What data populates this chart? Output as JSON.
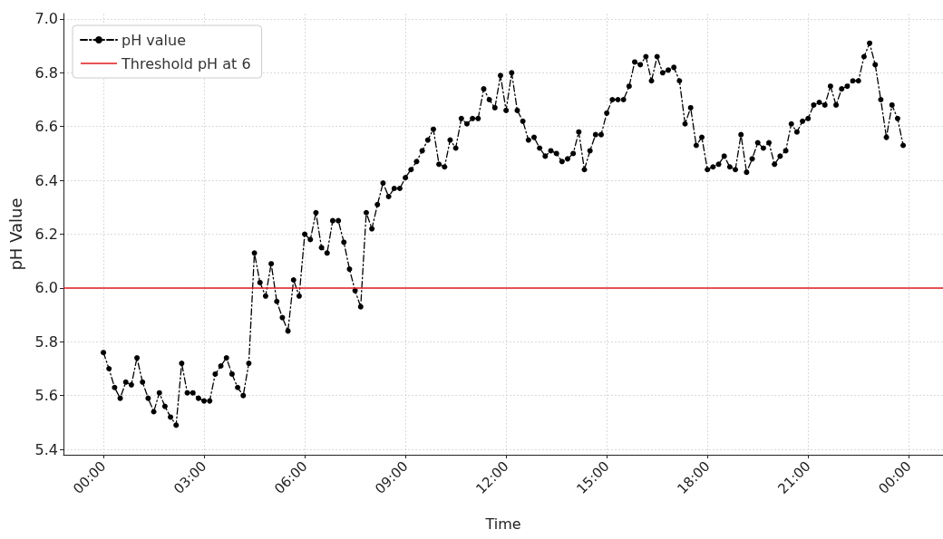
{
  "chart_data": {
    "type": "line",
    "xlabel": "Time",
    "ylabel": "pH Value",
    "x": [
      0,
      0.1667,
      0.3333,
      0.5,
      0.6667,
      0.8333,
      1,
      1.1667,
      1.3333,
      1.5,
      1.6667,
      1.8333,
      2,
      2.1667,
      2.3333,
      2.5,
      2.6667,
      2.8333,
      3,
      3.1667,
      3.3333,
      3.5,
      3.6667,
      3.8333,
      4,
      4.1667,
      4.3333,
      4.5,
      4.6667,
      4.8333,
      5,
      5.1667,
      5.3333,
      5.5,
      5.6667,
      5.8333,
      6,
      6.1667,
      6.3333,
      6.5,
      6.6667,
      6.8333,
      7,
      7.1667,
      7.3333,
      7.5,
      7.6667,
      7.8333,
      8,
      8.1667,
      8.3333,
      8.5,
      8.6667,
      8.8333,
      9,
      9.1667,
      9.3333,
      9.5,
      9.6667,
      9.8333,
      10,
      10.1667,
      10.3333,
      10.5,
      10.6667,
      10.8333,
      11,
      11.1667,
      11.3333,
      11.5,
      11.6667,
      11.8333,
      12,
      12.1667,
      12.3333,
      12.5,
      12.6667,
      12.8333,
      13,
      13.1667,
      13.3333,
      13.5,
      13.6667,
      13.8333,
      14,
      14.1667,
      14.3333,
      14.5,
      14.6667,
      14.8333,
      15,
      15.1667,
      15.3333,
      15.5,
      15.6667,
      15.8333,
      16,
      16.1667,
      16.3333,
      16.5,
      16.6667,
      16.8333,
      17,
      17.1667,
      17.3333,
      17.5,
      17.6667,
      17.8333,
      18,
      18.1667,
      18.3333,
      18.5,
      18.6667,
      18.8333,
      19,
      19.1667,
      19.3333,
      19.5,
      19.6667,
      19.8333,
      20,
      20.1667,
      20.3333,
      20.5,
      20.6667,
      20.8333,
      21,
      21.1667,
      21.3333,
      21.5,
      21.6667,
      21.8333,
      22,
      22.1667,
      22.3333,
      22.5,
      22.6667,
      22.8333,
      23,
      23.1667,
      23.3333,
      23.5,
      23.6667,
      23.8333
    ],
    "series": [
      {
        "name": "pH value",
        "color": "#000000",
        "values": [
          5.76,
          5.7,
          5.63,
          5.59,
          5.65,
          5.64,
          5.74,
          5.65,
          5.59,
          5.54,
          5.61,
          5.56,
          5.52,
          5.49,
          5.72,
          5.61,
          5.61,
          5.59,
          5.58,
          5.58,
          5.68,
          5.71,
          5.74,
          5.68,
          5.63,
          5.6,
          5.72,
          6.13,
          6.02,
          5.97,
          6.09,
          5.95,
          5.89,
          5.84,
          6.03,
          5.97,
          6.2,
          6.18,
          6.28,
          6.15,
          6.13,
          6.25,
          6.25,
          6.17,
          6.07,
          5.99,
          5.93,
          6.28,
          6.22,
          6.31,
          6.39,
          6.34,
          6.37,
          6.37,
          6.41,
          6.44,
          6.47,
          6.51,
          6.55,
          6.59,
          6.46,
          6.45,
          6.55,
          6.52,
          6.63,
          6.61,
          6.63,
          6.63,
          6.74,
          6.7,
          6.67,
          6.79,
          6.66,
          6.8,
          6.66,
          6.62,
          6.55,
          6.56,
          6.52,
          6.49,
          6.51,
          6.5,
          6.47,
          6.48,
          6.5,
          6.58,
          6.44,
          6.51,
          6.57,
          6.57,
          6.65,
          6.7,
          6.7,
          6.7,
          6.75,
          6.84,
          6.83,
          6.86,
          6.77,
          6.86,
          6.8,
          6.81,
          6.82,
          6.77,
          6.61,
          6.67,
          6.53,
          6.56,
          6.44,
          6.45,
          6.46,
          6.49,
          6.45,
          6.44,
          6.57,
          6.43,
          6.48,
          6.54,
          6.52,
          6.54,
          6.46,
          6.49,
          6.51,
          6.61,
          6.58,
          6.62,
          6.63,
          6.68,
          6.69,
          6.68,
          6.75,
          6.68,
          6.74,
          6.75,
          6.77,
          6.77,
          6.86,
          6.91,
          6.83,
          6.7,
          6.56,
          6.68,
          6.63,
          6.53
        ]
      }
    ],
    "xlim": [
      -1.19,
      25.02
    ],
    "xticks": [
      {
        "value": 0,
        "label": "00:00"
      },
      {
        "value": 3,
        "label": "03:00"
      },
      {
        "value": 6,
        "label": "06:00"
      },
      {
        "value": 9,
        "label": "09:00"
      },
      {
        "value": 12,
        "label": "12:00"
      },
      {
        "value": 15,
        "label": "15:00"
      },
      {
        "value": 18,
        "label": "18:00"
      },
      {
        "value": 21,
        "label": "21:00"
      },
      {
        "value": 24,
        "label": "00:00"
      }
    ],
    "ylim": [
      5.38,
      7.02
    ],
    "yticks": [
      {
        "value": 5.4,
        "label": "5.4"
      },
      {
        "value": 5.6,
        "label": "5.6"
      },
      {
        "value": 5.8,
        "label": "5.8"
      },
      {
        "value": 6,
        "label": "6.0"
      },
      {
        "value": 6.2,
        "label": "6.2"
      },
      {
        "value": 6.4,
        "label": "6.4"
      },
      {
        "value": 6.6,
        "label": "6.6"
      },
      {
        "value": 6.8,
        "label": "6.8"
      },
      {
        "value": 7,
        "label": "7.0"
      }
    ],
    "ref_lines": [
      {
        "axis": "y",
        "value": 6,
        "label": "Threshold pH at 6",
        "color": "#e31a1c"
      }
    ],
    "grid": true,
    "legend": "top left",
    "marker": "circle",
    "line_style": "dashed"
  }
}
